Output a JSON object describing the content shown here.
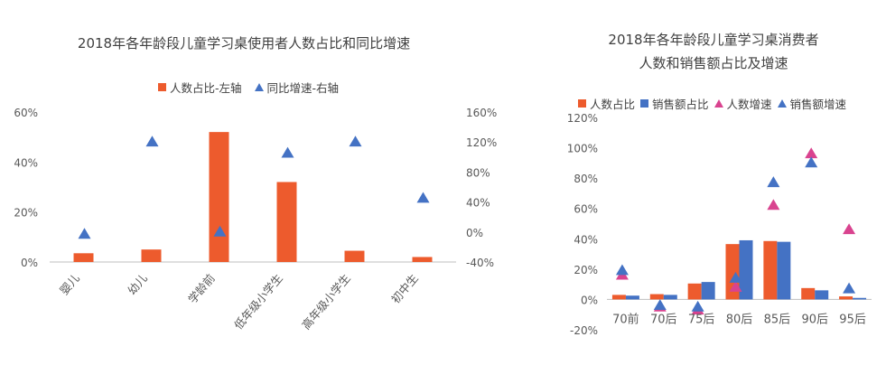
{
  "colors": {
    "orange": "#ed5b2d",
    "blue": "#4472c4",
    "pink": "#d9438f",
    "axis": "#bfbfbf",
    "text": "#595959"
  },
  "chart_data": [
    {
      "type": "bar",
      "title": "2018年各年龄段儿童学习桌使用者人数占比和同比增速",
      "categories": [
        "婴儿",
        "幼儿",
        "学龄前",
        "低年级小学生",
        "高年级小学生",
        "初中生"
      ],
      "legend": [
        "人数占比-左轴",
        "同比增速-右轴"
      ],
      "yaxis_left": {
        "ticks": [
          "0%",
          "20%",
          "40%",
          "60%"
        ],
        "ylim": [
          0,
          60
        ]
      },
      "yaxis_right": {
        "ticks": [
          "-40%",
          "0%",
          "40%",
          "80%",
          "120%",
          "160%"
        ],
        "ylim": [
          -40,
          160
        ]
      },
      "series": [
        {
          "name": "人数占比-左轴",
          "type": "bar",
          "axis": "left",
          "values": [
            3.5,
            5.0,
            52.0,
            32.0,
            4.5,
            2.0
          ]
        },
        {
          "name": "同比增速-右轴",
          "type": "scatter",
          "axis": "right",
          "marker": "triangle",
          "values": [
            -3,
            120,
            0,
            105,
            120,
            45
          ]
        }
      ],
      "grid": false
    },
    {
      "type": "bar",
      "title": [
        "2018年各年龄段儿童学习桌消费者",
        "人数和销售额占比及增速"
      ],
      "categories": [
        "70前",
        "70后",
        "75后",
        "80后",
        "85后",
        "90后",
        "95后"
      ],
      "legend": [
        "人数占比",
        "销售额占比",
        "人数增速",
        "销售额增速"
      ],
      "yaxis": {
        "ticks": [
          "-20%",
          "0%",
          "20%",
          "40%",
          "60%",
          "80%",
          "100%",
          "120%"
        ],
        "ylim": [
          -20,
          120
        ]
      },
      "series": [
        {
          "name": "人数占比",
          "type": "bar",
          "values": [
            3,
            3.5,
            10.5,
            36.5,
            38.5,
            7.5,
            2
          ]
        },
        {
          "name": "销售额占比",
          "type": "bar",
          "values": [
            2.5,
            3,
            11.5,
            39,
            38,
            6,
            1
          ]
        },
        {
          "name": "人数增速",
          "type": "scatter",
          "marker": "triangle",
          "values": [
            16,
            -5,
            -7,
            8,
            62,
            96,
            46
          ]
        },
        {
          "name": "销售额增速",
          "type": "scatter",
          "marker": "triangle",
          "values": [
            19,
            -4,
            -5,
            14,
            77,
            90,
            7
          ]
        }
      ],
      "grid": false
    }
  ]
}
